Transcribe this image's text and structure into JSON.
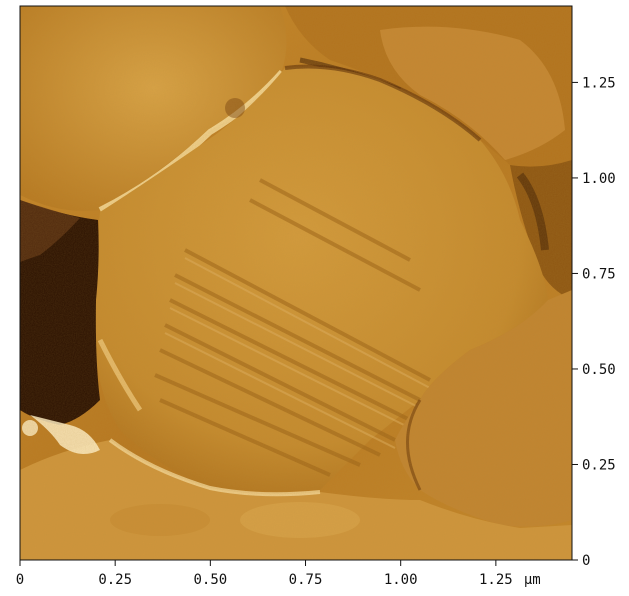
{
  "image": {
    "description_tokens": [
      "afm-phase-image",
      "grain-surface"
    ],
    "palette": {
      "dark": "#3a1a02",
      "mid": "#b8781e",
      "light": "#f0cf86",
      "highlight": "#fff0c8",
      "frame": "#111111"
    }
  },
  "axes": {
    "x": {
      "ticks": [
        {
          "value": 0,
          "label": "0"
        },
        {
          "value": 0.25,
          "label": "0.25"
        },
        {
          "value": 0.5,
          "label": "0.50"
        },
        {
          "value": 0.75,
          "label": "0.75"
        },
        {
          "value": 1.0,
          "label": "1.00"
        },
        {
          "value": 1.25,
          "label": "1.25"
        }
      ],
      "unit": "µm",
      "range": [
        0,
        1.45
      ]
    },
    "y": {
      "ticks": [
        {
          "value": 0,
          "label": "0"
        },
        {
          "value": 0.25,
          "label": "0.25"
        },
        {
          "value": 0.5,
          "label": "0.50"
        },
        {
          "value": 0.75,
          "label": "0.75"
        },
        {
          "value": 1.0,
          "label": "1.00"
        },
        {
          "value": 1.25,
          "label": "1.25"
        }
      ],
      "range": [
        0,
        1.45
      ]
    }
  }
}
